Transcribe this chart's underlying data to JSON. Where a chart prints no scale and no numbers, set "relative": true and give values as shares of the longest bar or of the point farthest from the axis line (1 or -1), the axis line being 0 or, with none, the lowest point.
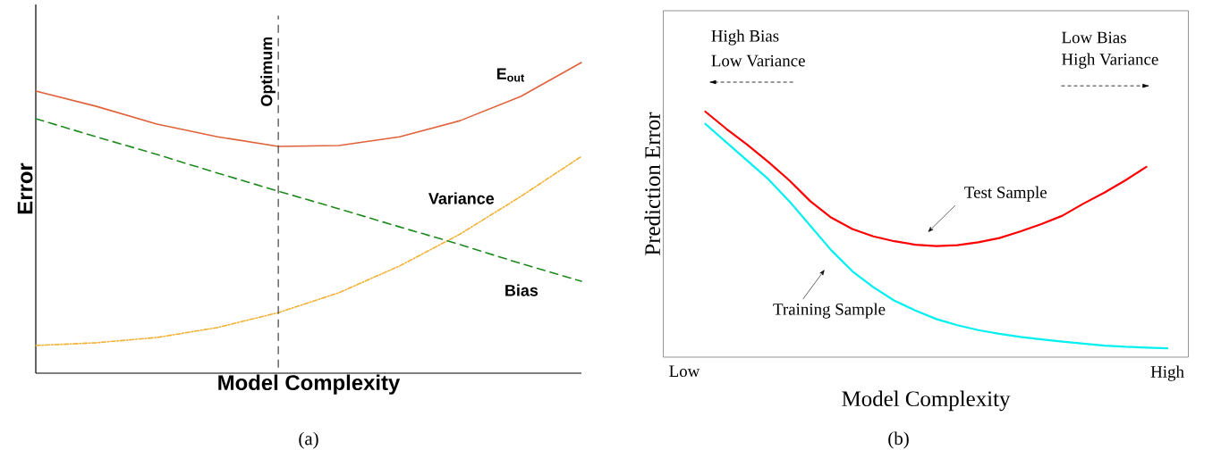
{
  "chart_data": [
    {
      "type": "line",
      "relative": true,
      "xlabel": "Model Complexity",
      "ylabel": "Error",
      "categories": [
        null,
        null,
        null,
        null,
        null,
        null,
        null,
        null,
        null,
        null
      ],
      "tick_labels": false,
      "series": [
        {
          "name": "E$_{out}$",
          "color": "#e0623a",
          "line_style": "solid",
          "values": [
            0.908,
            0.859,
            0.802,
            0.761,
            0.73,
            0.733,
            0.761,
            0.813,
            0.891,
            1.0
          ]
        },
        {
          "name": "Variance",
          "color": "#f2b134",
          "line_style": "dotted",
          "values": [
            0.089,
            0.098,
            0.115,
            0.147,
            0.195,
            0.259,
            0.345,
            0.448,
            0.569,
            0.698
          ]
        },
        {
          "name": "Bias",
          "color": "#1e8a1e",
          "line_style": "dashed",
          "values": [
            0.819,
            0.761,
            0.704,
            0.644,
            0.586,
            0.529,
            0.471,
            0.414,
            0.353,
            0.296
          ]
        }
      ],
      "ref_lines": [
        {
          "axis": "x",
          "label": "Optimum",
          "color": "#404040",
          "line_style": "dashed"
        }
      ],
      "annotations": [
        "(a)"
      ]
    },
    {
      "type": "line",
      "relative": true,
      "xlabel": "Model Complexity",
      "ylabel": "Prediction Error",
      "categories": [
        "Low",
        null,
        null,
        null,
        null,
        null,
        null,
        null,
        null,
        null,
        null,
        null,
        null,
        null,
        null,
        null,
        null,
        null,
        null,
        null,
        null,
        null,
        null,
        "High"
      ],
      "tick_labels": "x",
      "series": [
        {
          "name": "Test Sample",
          "color": "#ff0000",
          "values": [
            null,
            1.0,
            0.93,
            0.865,
            0.795,
            0.72,
            0.635,
            0.568,
            0.522,
            0.492,
            0.472,
            0.458,
            0.452,
            0.456,
            0.468,
            0.485,
            0.512,
            0.542,
            0.576,
            0.625,
            0.67,
            0.72,
            0.775,
            null
          ]
        },
        {
          "name": "Training Sample",
          "color": "#00f0f0",
          "values": [
            null,
            0.95,
            0.875,
            0.8,
            0.725,
            0.635,
            0.535,
            0.435,
            0.35,
            0.285,
            0.23,
            0.19,
            0.155,
            0.13,
            0.11,
            0.095,
            0.082,
            0.072,
            0.063,
            0.055,
            0.047,
            0.042,
            0.039,
            0.036
          ]
        }
      ],
      "annotations": [
        "High Bias",
        "Low Variance",
        "Low Bias",
        "High Variance",
        "(b)"
      ]
    }
  ]
}
